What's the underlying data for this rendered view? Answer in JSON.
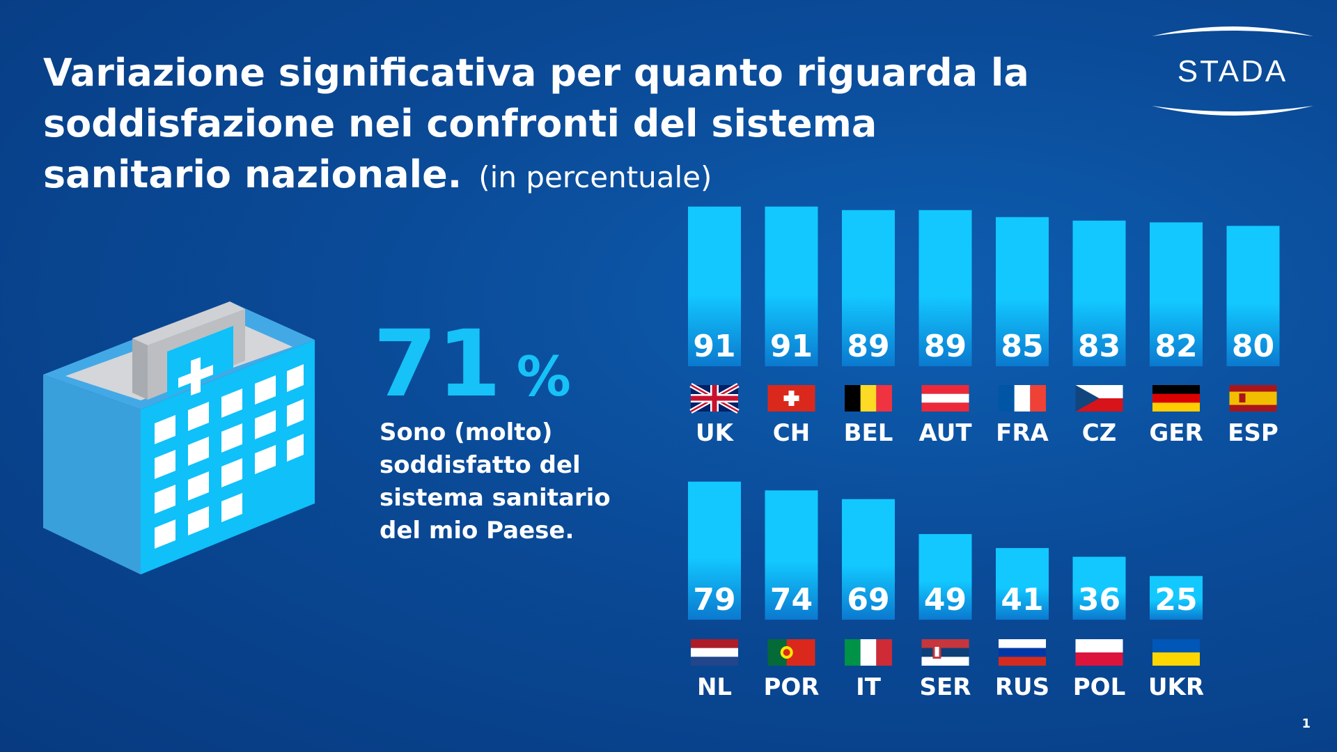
{
  "title": {
    "main": "Variazione significativa per quanto riguarda la soddisfazione nei confronti del sistema sanitario nazionale.",
    "sub": "(in percentuale)"
  },
  "logo": {
    "text": "STADA"
  },
  "summary": {
    "value": "71",
    "unit": "%",
    "caption": "Sono (molto) soddisfatto del sistema sanitario del mio Paese."
  },
  "page_number": "1",
  "colors": {
    "bar_top": "#12c8ff",
    "bar_bottom": "#0b79cf",
    "highlight": "#16c2f8"
  },
  "chart_data": {
    "type": "bar",
    "title": "",
    "xlabel": "",
    "ylabel": "",
    "ylim": [
      0,
      100
    ],
    "categories": [
      "UK",
      "CH",
      "BEL",
      "AUT",
      "FRA",
      "CZ",
      "GER",
      "ESP",
      "NL",
      "POR",
      "IT",
      "SER",
      "RUS",
      "POL",
      "UKR"
    ],
    "values": [
      91,
      91,
      89,
      89,
      85,
      83,
      82,
      80,
      79,
      74,
      69,
      49,
      41,
      36,
      25
    ],
    "flags": [
      "flag-uk",
      "flag-ch",
      "flag-bel",
      "flag-aut",
      "flag-fra",
      "flag-cz",
      "flag-ger",
      "flag-esp",
      "flag-nl",
      "flag-por",
      "flag-it",
      "flag-ser",
      "flag-rus",
      "flag-pol",
      "flag-ukr"
    ],
    "rows": [
      [
        0,
        1,
        2,
        3,
        4,
        5,
        6,
        7
      ],
      [
        8,
        9,
        10,
        11,
        12,
        13,
        14
      ]
    ]
  }
}
